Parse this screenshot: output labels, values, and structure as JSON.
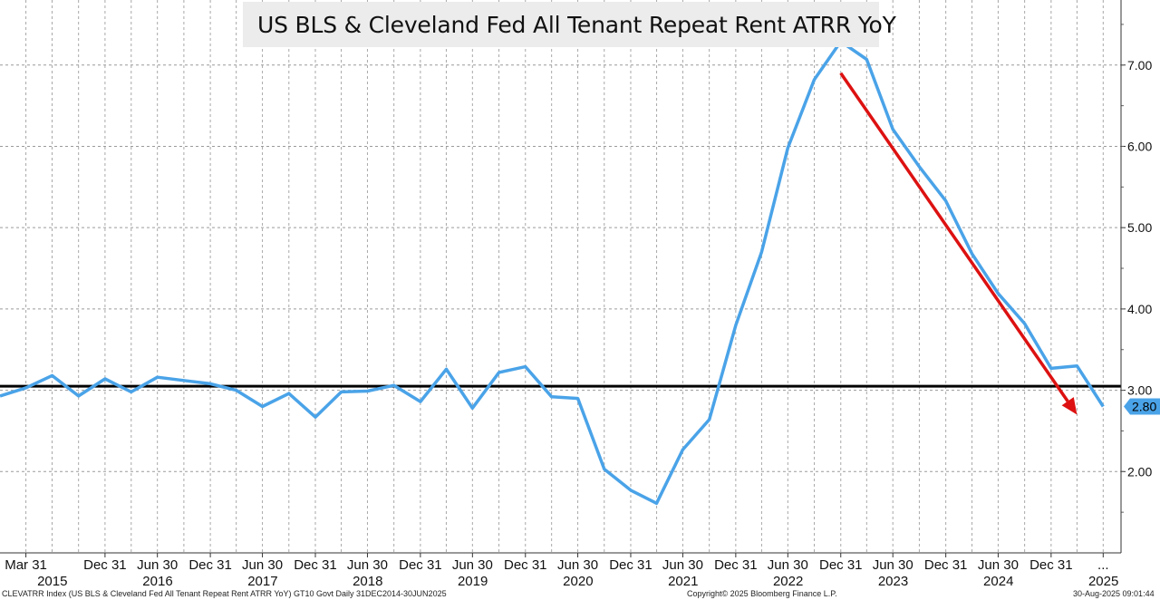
{
  "legend": {
    "label": "US BLS & Cleveland Fed All Tenant Repeat Rent ATRR YoY",
    "color": "#4aa3e8"
  },
  "footer": {
    "left": "CLEVATRR Index (US BLS & Cleveland Fed All Tenant Repeat Rent ATRR YoY) GT10  Govt  Daily 31DEC2014-30JUN2025",
    "center": "Copyright© 2025 Bloomberg Finance L.P.",
    "right": "30-Aug-2025 09:01:44"
  },
  "chart_data": {
    "type": "line",
    "title": "",
    "xlabel": "",
    "ylabel": "",
    "ylim": [
      1.0,
      7.8
    ],
    "y_ticks": [
      "2.00",
      "3.00",
      "4.00",
      "5.00",
      "6.00",
      "7.00"
    ],
    "y_axis_position": "right",
    "grid": true,
    "legend_position": "top-center",
    "reference_line": {
      "value": 3.05,
      "color": "#000000"
    },
    "last_value_label": {
      "text": "2.80",
      "value": 2.8,
      "color": "#4aa3e8"
    },
    "trend_arrow": {
      "color": "#dd1111",
      "from": {
        "x": "2022-12-31",
        "y": 6.9
      },
      "to": {
        "x": "2025-03-31",
        "y": 2.7
      }
    },
    "x_tick_labels": [
      "Mar 31",
      "Dec 31",
      "Jun 30",
      "Dec 31",
      "Jun 30",
      "Dec 31",
      "Jun 30",
      "Dec 31",
      "Jun 30",
      "Dec 31",
      "Jun 30",
      "Dec 31",
      "Jun 30",
      "Dec 31",
      "Jun 30",
      "Dec 31",
      "Jun 30",
      "Dec 31",
      "Jun 30",
      "Dec 31",
      "..."
    ],
    "x_tick_dates": [
      "2015-03-31",
      "2015-12-31",
      "2016-06-30",
      "2016-12-31",
      "2017-06-30",
      "2017-12-31",
      "2018-06-30",
      "2018-12-31",
      "2019-06-30",
      "2019-12-31",
      "2020-06-30",
      "2020-12-31",
      "2021-06-30",
      "2021-12-31",
      "2022-06-30",
      "2022-12-31",
      "2023-06-30",
      "2023-12-31",
      "2024-06-30",
      "2024-12-31",
      "2025-06-30"
    ],
    "year_labels": [
      "2015",
      "2016",
      "2017",
      "2018",
      "2019",
      "2020",
      "2021",
      "2022",
      "2023",
      "2024",
      "2025"
    ],
    "series": [
      {
        "name": "US BLS & Cleveland Fed All Tenant Repeat Rent ATRR YoY",
        "color": "#4aa3e8",
        "x": [
          "2014-12-31",
          "2015-03-31",
          "2015-06-30",
          "2015-09-30",
          "2015-12-31",
          "2016-03-31",
          "2016-06-30",
          "2016-09-30",
          "2016-12-31",
          "2017-03-31",
          "2017-06-30",
          "2017-09-30",
          "2017-12-31",
          "2018-03-31",
          "2018-06-30",
          "2018-09-30",
          "2018-12-31",
          "2019-03-31",
          "2019-06-30",
          "2019-09-30",
          "2019-12-31",
          "2020-03-31",
          "2020-06-30",
          "2020-09-30",
          "2020-12-31",
          "2021-03-31",
          "2021-06-30",
          "2021-09-30",
          "2021-12-31",
          "2022-03-31",
          "2022-06-30",
          "2022-09-30",
          "2022-12-31",
          "2023-03-31",
          "2023-06-30",
          "2023-09-30",
          "2023-12-31",
          "2024-03-31",
          "2024-06-30",
          "2024-09-30",
          "2024-12-31",
          "2025-03-31",
          "2025-06-30"
        ],
        "values": [
          2.93,
          3.03,
          3.18,
          2.93,
          3.14,
          2.98,
          3.16,
          3.12,
          3.08,
          3.0,
          2.8,
          2.96,
          2.67,
          2.98,
          2.99,
          3.06,
          2.86,
          3.26,
          2.78,
          3.22,
          3.29,
          2.92,
          2.9,
          2.03,
          1.77,
          1.61,
          2.27,
          2.64,
          3.8,
          4.7,
          5.98,
          6.82,
          7.29,
          7.07,
          6.21,
          5.75,
          5.33,
          4.68,
          4.19,
          3.82,
          3.27,
          3.3,
          2.8
        ]
      }
    ]
  }
}
